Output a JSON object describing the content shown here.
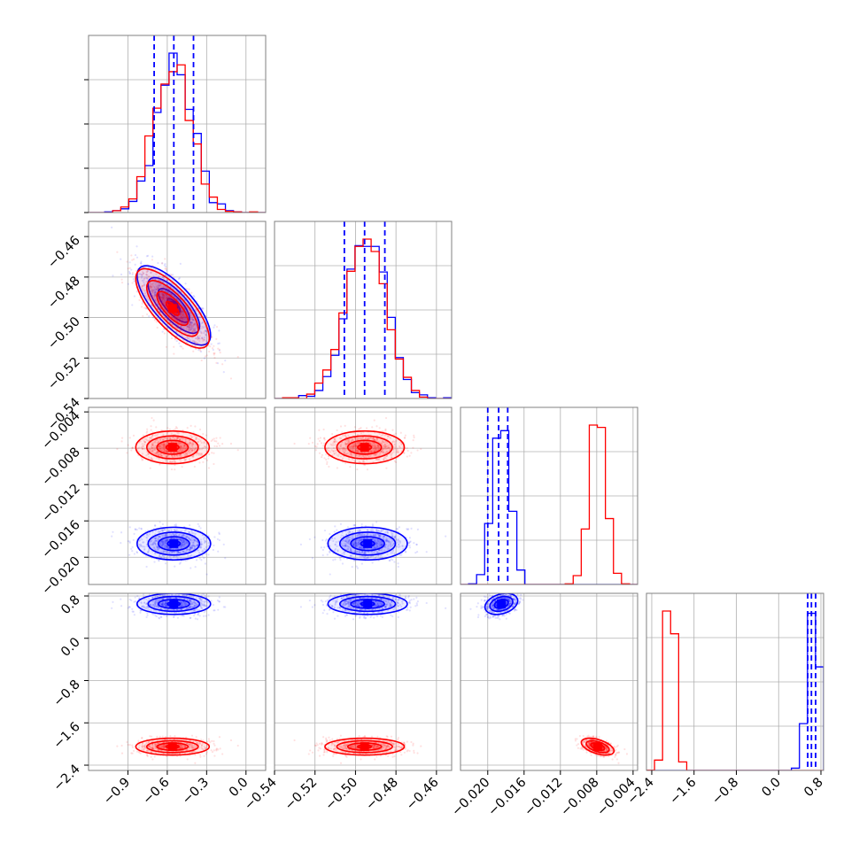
{
  "chart_data": {
    "type": "corner",
    "title": "",
    "colors": {
      "series_a": "#0000ff",
      "series_b": "#ff0000",
      "grid": "#b0b0b0",
      "axes": "#808080"
    },
    "series": [
      {
        "color": "#0000ff",
        "means": [
          -0.55,
          -0.494,
          -0.0185,
          0.65
        ],
        "sigmas": [
          0.14,
          0.0098,
          0.0009,
          0.1
        ],
        "rho": [
          [
            1,
            -0.75,
            0,
            0
          ],
          [
            -0.75,
            1,
            0,
            0
          ],
          [
            0,
            0,
            1,
            0.3
          ],
          [
            0,
            0,
            0.3,
            1
          ]
        ],
        "quantiles": [
          [
            -0.7,
            -0.55,
            -0.4
          ],
          [
            -0.5055,
            -0.4955,
            -0.4855
          ],
          [
            -0.02,
            -0.0188,
            -0.0178
          ],
          [
            0.55,
            0.62,
            0.7
          ]
        ]
      },
      {
        "color": "#ff0000",
        "means": [
          -0.56,
          -0.4955,
          -0.0079,
          -2.05
        ],
        "sigmas": [
          0.14,
          0.0098,
          0.0009,
          0.08
        ],
        "rho": [
          [
            1,
            -0.75,
            0,
            0
          ],
          [
            -0.75,
            1,
            0,
            0
          ],
          [
            0,
            0,
            1,
            -0.5
          ],
          [
            0,
            0,
            -0.5,
            1
          ]
        ],
        "quantiles": null
      }
    ],
    "panels": {
      "ranges": [
        [
          -1.2,
          0.15
        ],
        [
          -0.54,
          -0.4525
        ],
        [
          -0.023,
          -0.0035
        ],
        [
          -2.5,
          0.85
        ]
      ],
      "ticks": [
        [
          -0.9,
          -0.6,
          -0.3,
          0.0
        ],
        [
          -0.54,
          -0.52,
          -0.5,
          -0.48,
          -0.46
        ],
        [
          -0.02,
          -0.016,
          -0.012,
          -0.008,
          -0.004
        ],
        [
          -2.4,
          -1.6,
          -0.8,
          0.0,
          0.8
        ]
      ],
      "tick_labels": [
        [
          "−0.9",
          "−0.6",
          "−0.3",
          "0.0"
        ],
        [
          "−0.54",
          "−0.52",
          "−0.50",
          "−0.48",
          "−0.46"
        ],
        [
          "−0.020",
          "−0.016",
          "−0.012",
          "−0.008",
          "−0.004"
        ],
        [
          "−2.4",
          "−1.6",
          "−0.8",
          "0.0",
          "0.8"
        ]
      ]
    },
    "grid": true,
    "hist_ticks": [
      [],
      [],
      [],
      []
    ]
  }
}
